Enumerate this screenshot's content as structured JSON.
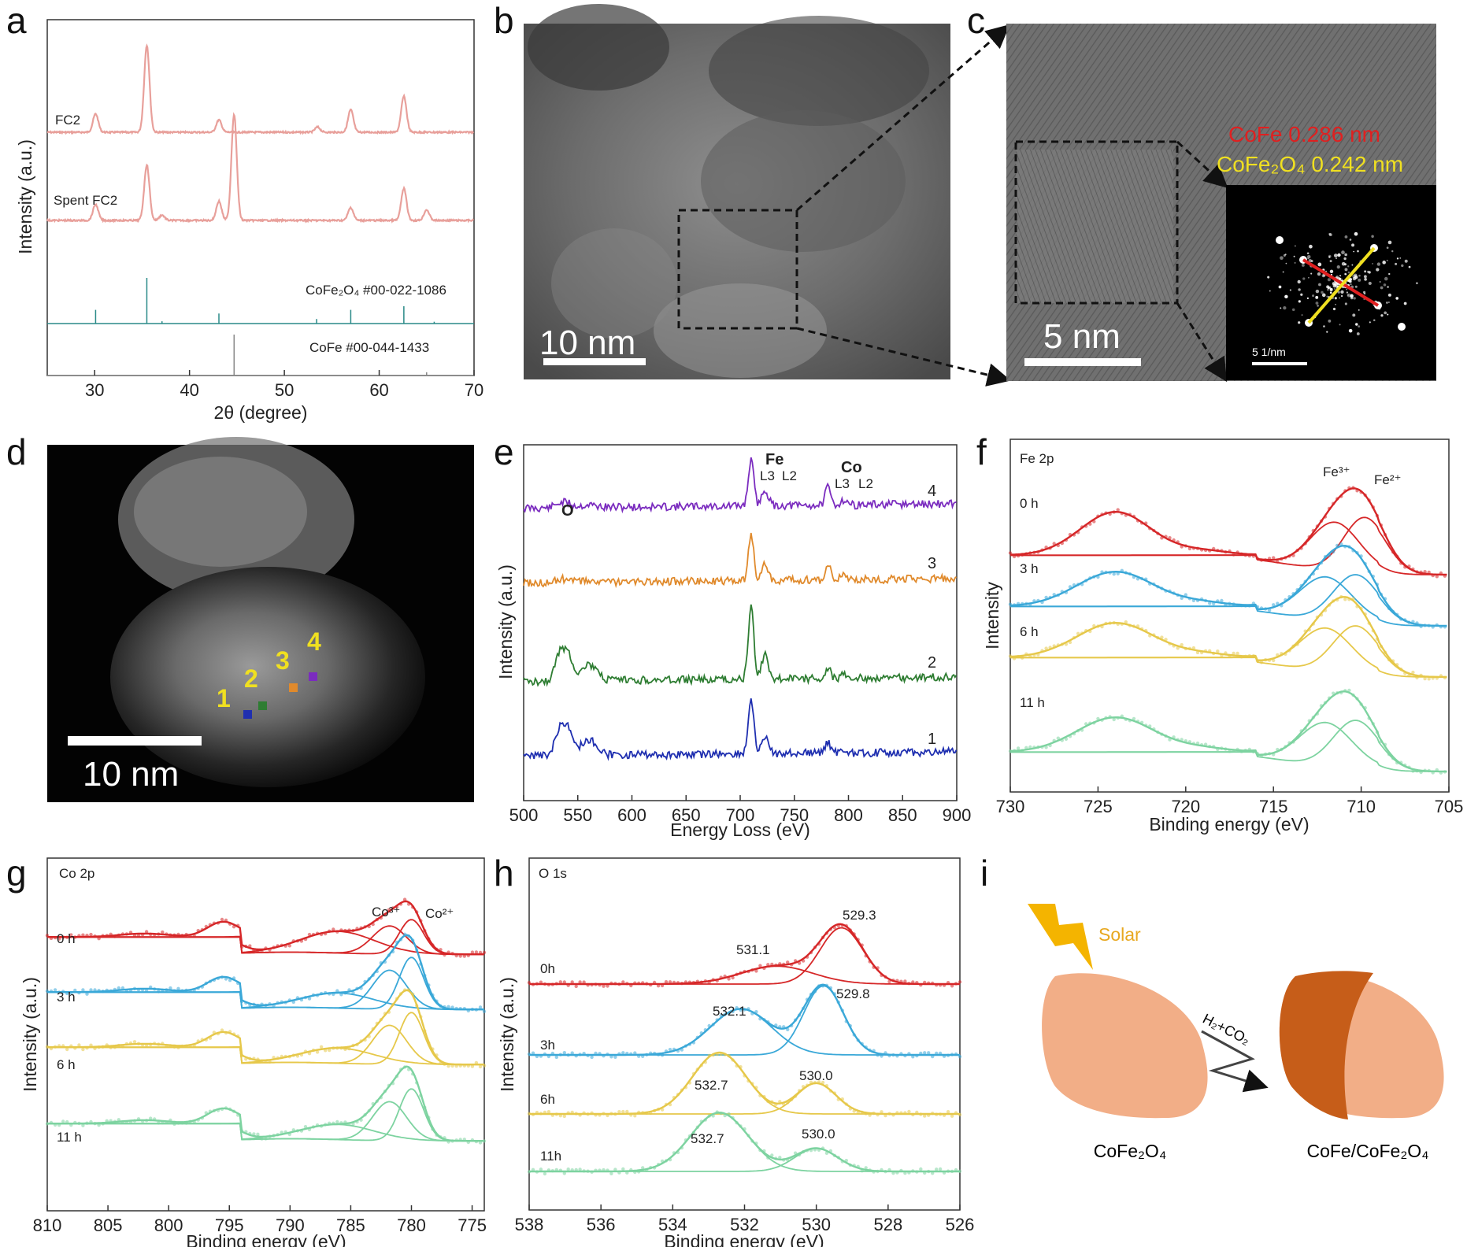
{
  "panel_labels": [
    "a",
    "b",
    "c",
    "d",
    "e",
    "f",
    "g",
    "h",
    "i"
  ],
  "chart_data": [
    {
      "panel": "a",
      "type": "line",
      "xlabel": "2θ (degree)",
      "ylabel": "Intensity (a.u.)",
      "xlim": [
        25,
        70
      ],
      "xticks": [
        30,
        40,
        50,
        60,
        70
      ],
      "series": [
        {
          "name": "FC2",
          "color": "#e8a09b",
          "x": [
            25,
            30,
            35.4,
            43.1,
            53.4,
            57,
            62.6,
            70
          ],
          "peaks": [
            [
              30.1,
              0.18
            ],
            [
              35.5,
              0.85
            ],
            [
              43.1,
              0.12
            ],
            [
              53.5,
              0.05
            ],
            [
              57.0,
              0.22
            ],
            [
              62.6,
              0.35
            ]
          ]
        },
        {
          "name": "Spent FC2",
          "color": "#e8a09b",
          "peaks": [
            [
              30.1,
              0.15
            ],
            [
              35.5,
              0.52
            ],
            [
              37.1,
              0.05
            ],
            [
              43.1,
              0.18
            ],
            [
              44.7,
              1.0
            ],
            [
              57.0,
              0.12
            ],
            [
              62.6,
              0.3
            ],
            [
              65.0,
              0.1
            ]
          ]
        }
      ],
      "references": [
        {
          "label": "CoFe₂O₄ #00-022-1086",
          "color": "#2a8a88",
          "lines": [
            [
              18.3,
              0.0
            ],
            [
              30.1,
              0.3
            ],
            [
              35.5,
              1.0
            ],
            [
              37.1,
              0.05
            ],
            [
              43.1,
              0.22
            ],
            [
              53.4,
              0.1
            ],
            [
              57.0,
              0.3
            ],
            [
              62.6,
              0.38
            ],
            [
              65.8,
              0.04
            ]
          ]
        },
        {
          "label": "CoFe #00-044-1433",
          "color": "#888888",
          "lines": [
            [
              44.7,
              1.0
            ],
            [
              65.0,
              0.08
            ]
          ]
        }
      ]
    },
    {
      "panel": "e",
      "type": "line",
      "xlabel": "Energy Loss (eV)",
      "ylabel": "Intensity (a.u.)",
      "xlim": [
        500,
        900
      ],
      "xticks": [
        500,
        550,
        600,
        650,
        700,
        750,
        800,
        850,
        900
      ],
      "annotations": [
        "O",
        "Fe",
        "L3",
        "L2",
        "Co",
        "L3",
        "L2"
      ],
      "series": [
        {
          "name": "4",
          "color": "#7b2cbf"
        },
        {
          "name": "3",
          "color": "#e08a2c"
        },
        {
          "name": "2",
          "color": "#2e7d32"
        },
        {
          "name": "1",
          "color": "#1f2fb0"
        }
      ]
    },
    {
      "panel": "f",
      "type": "line",
      "title": "Fe 2p",
      "xlabel": "Binding energy (eV)",
      "ylabel": "Intensity",
      "xlim": [
        730,
        705
      ],
      "xticks": [
        730,
        725,
        720,
        715,
        710,
        705
      ],
      "annotations": [
        "Fe³⁺",
        "Fe²⁺"
      ],
      "series": [
        {
          "name": "0 h",
          "color": "#d62728"
        },
        {
          "name": "3 h",
          "color": "#3aa8d8"
        },
        {
          "name": "6 h",
          "color": "#e6c84a"
        },
        {
          "name": "11 h",
          "color": "#7dd3a0"
        }
      ]
    },
    {
      "panel": "g",
      "type": "line",
      "title": "Co 2p",
      "xlabel": "Binding energy (eV)",
      "ylabel": "Intensity (a.u.)",
      "xlim": [
        810,
        774
      ],
      "xticks": [
        810,
        805,
        800,
        795,
        790,
        785,
        780,
        775
      ],
      "annotations": [
        "Co³⁺",
        "Co²⁺"
      ],
      "series": [
        {
          "name": "0 h",
          "color": "#d62728"
        },
        {
          "name": "3 h",
          "color": "#3aa8d8"
        },
        {
          "name": "6 h",
          "color": "#e6c84a"
        },
        {
          "name": "11 h",
          "color": "#7dd3a0"
        }
      ]
    },
    {
      "panel": "h",
      "type": "line",
      "title": "O 1s",
      "xlabel": "Binding energy (eV)",
      "ylabel": "Intensity (a.u.)",
      "xlim": [
        538,
        526
      ],
      "xticks": [
        538,
        536,
        534,
        532,
        530,
        528,
        526
      ],
      "series": [
        {
          "name": "0h",
          "color": "#d62728",
          "peaks_label": [
            "531.1",
            "529.3"
          ]
        },
        {
          "name": "3h",
          "color": "#3aa8d8",
          "peaks_label": [
            "532.1",
            "529.8"
          ]
        },
        {
          "name": "6h",
          "color": "#e6c84a",
          "peaks_label": [
            "532.7",
            "530.0"
          ]
        },
        {
          "name": "11h",
          "color": "#7dd3a0",
          "peaks_label": [
            "532.7",
            "530.0"
          ]
        }
      ]
    }
  ],
  "panel_b": {
    "scalebar": "10 nm"
  },
  "panel_c": {
    "scalebar": "5 nm",
    "d1": "CoFe 0.286 nm",
    "d2": "CoFe₂O₄ 0.242 nm",
    "fft_scale": "5 1/nm"
  },
  "panel_d": {
    "scalebar": "10 nm",
    "points": [
      "1",
      "2",
      "3",
      "4"
    ]
  },
  "panel_i": {
    "solar": "Solar",
    "reagent": "H₂+CO₂",
    "left_label": "CoFe₂O₄",
    "right_label": "CoFe/CoFe₂O₄"
  }
}
